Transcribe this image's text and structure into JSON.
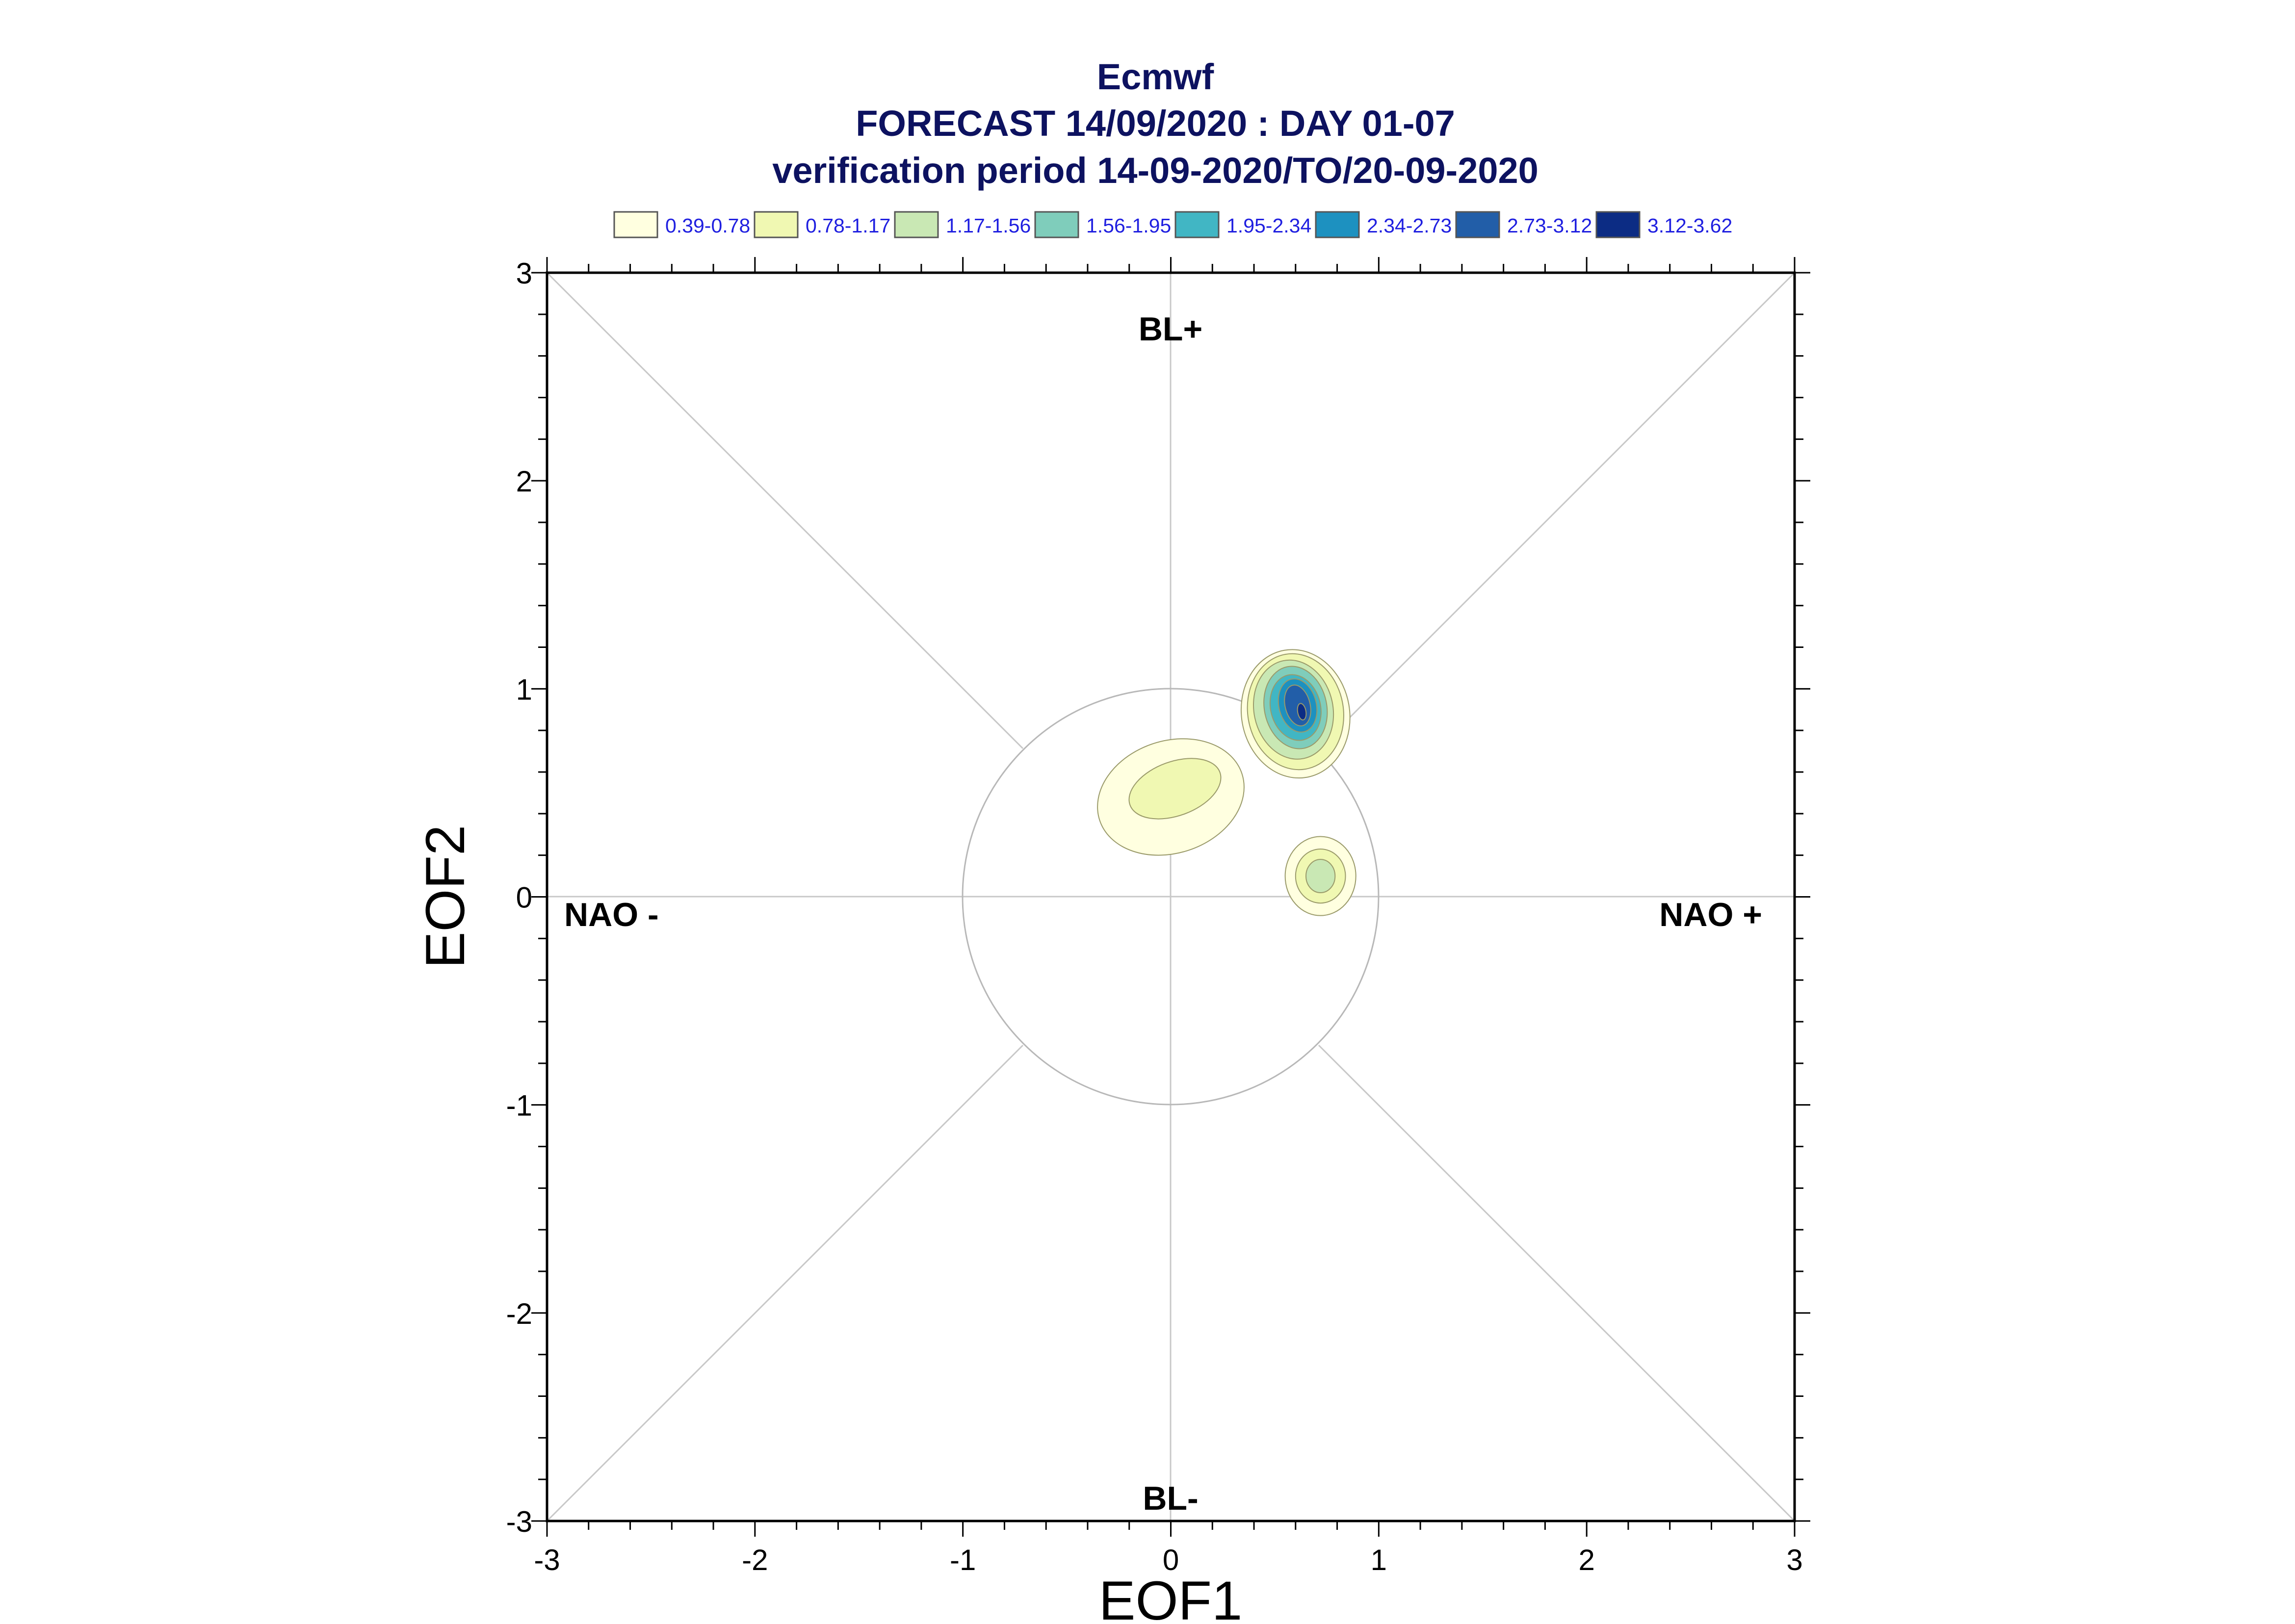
{
  "chart_data": {
    "type": "contour",
    "title": [
      "Ecmwf",
      "FORECAST 14/09/2020 : DAY 01-07",
      "verification period 14-09-2020/TO/20-09-2020"
    ],
    "xlabel": "EOF1",
    "ylabel": "EOF2",
    "xlim": [
      -3,
      3
    ],
    "ylim": [
      -3,
      3
    ],
    "xticks": [
      "-3",
      "-2",
      "-1",
      "0",
      "1",
      "2",
      "3"
    ],
    "yticks": [
      "-3",
      "-2",
      "-1",
      "0",
      "1",
      "2",
      "3"
    ],
    "regime_labels": {
      "top": "BL+",
      "bottom": "BL-",
      "left": "NAO -",
      "right": "NAO +"
    },
    "reference_circle_radius": 1,
    "levels": [
      {
        "label": "0.39-0.78",
        "color": "#ffffe0"
      },
      {
        "label": "0.78-1.17",
        "color": "#f0f8b2"
      },
      {
        "label": "1.17-1.56",
        "color": "#c9e8b4"
      },
      {
        "label": "1.56-1.95",
        "color": "#7fcdbb"
      },
      {
        "label": "1.95-2.34",
        "color": "#41b6c4"
      },
      {
        "label": "2.34-2.73",
        "color": "#1d91c0"
      },
      {
        "label": "2.73-3.12",
        "color": "#225ea8"
      },
      {
        "label": "3.12-3.62",
        "color": "#0c2c84"
      }
    ],
    "density_peaks": [
      {
        "x": 0.62,
        "y": 0.88,
        "peak": 3.5,
        "max_level": 8
      },
      {
        "x": 0.0,
        "y": 0.48,
        "peak": 1.0,
        "max_level": 2
      },
      {
        "x": 0.72,
        "y": 0.1,
        "peak": 1.5,
        "max_level": 3
      }
    ],
    "legend_position": "top",
    "grid": false
  }
}
